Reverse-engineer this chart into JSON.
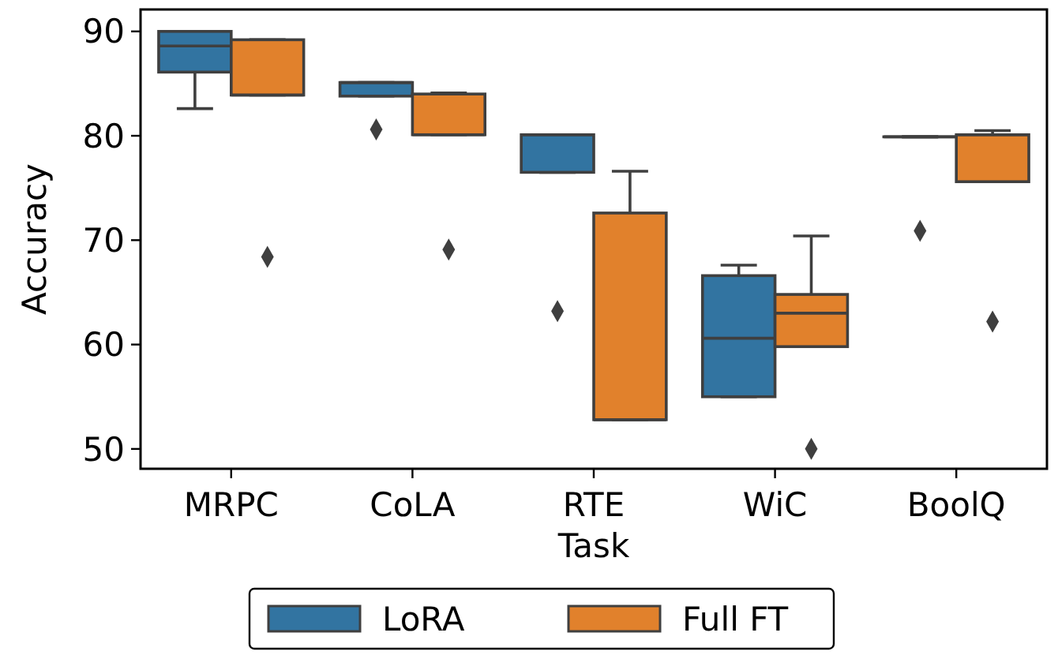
{
  "chart_data": {
    "type": "box",
    "xlabel": "Task",
    "ylabel": "Accuracy",
    "categories": [
      "MRPC",
      "CoLA",
      "RTE",
      "WiC",
      "BoolQ"
    ],
    "ylim": [
      48.1,
      92.1
    ],
    "yticks": [
      50,
      60,
      70,
      80,
      90
    ],
    "legend": "bottom",
    "grid": false,
    "series": [
      {
        "name": "LoRA",
        "color": "#3274a1",
        "boxes": [
          {
            "low": 82.6,
            "q1": 86.1,
            "median": 88.6,
            "q3": 90,
            "high": 90
          },
          {
            "low": 83.8,
            "q1": 83.8,
            "median": 85.1,
            "q3": 85.1,
            "high": 85.1,
            "outliers": [
              80.6
            ]
          },
          {
            "low": 76.5,
            "q1": 76.5,
            "median": 80.1,
            "q3": 80.1,
            "high": 80.1,
            "outliers": [
              63.2
            ]
          },
          {
            "low": 55,
            "q1": 55,
            "median": 60.6,
            "q3": 66.6,
            "high": 67.6
          },
          {
            "low": 79.9,
            "q1": 79.9,
            "median": 79.9,
            "q3": 79.9,
            "high": 79.9,
            "outliers": [
              70.9
            ]
          }
        ]
      },
      {
        "name": "Full FT",
        "color": "#e1812c",
        "boxes": [
          {
            "low": 83.9,
            "q1": 83.9,
            "median": 83.9,
            "q3": 89.2,
            "high": 89.2,
            "outliers": [
              68.4
            ]
          },
          {
            "low": 80.1,
            "q1": 80.1,
            "median": 80.1,
            "q3": 84,
            "high": 84.1,
            "outliers": [
              69.1
            ]
          },
          {
            "low": 52.8,
            "q1": 52.8,
            "median": 52.8,
            "q3": 72.6,
            "high": 76.6
          },
          {
            "low": 59.8,
            "q1": 59.8,
            "median": 63,
            "q3": 64.8,
            "high": 70.4,
            "outliers": [
              50
            ]
          },
          {
            "low": 75.6,
            "q1": 75.6,
            "median": 80.1,
            "q3": 80.1,
            "high": 80.5,
            "outliers": [
              62.2
            ]
          }
        ]
      }
    ]
  }
}
